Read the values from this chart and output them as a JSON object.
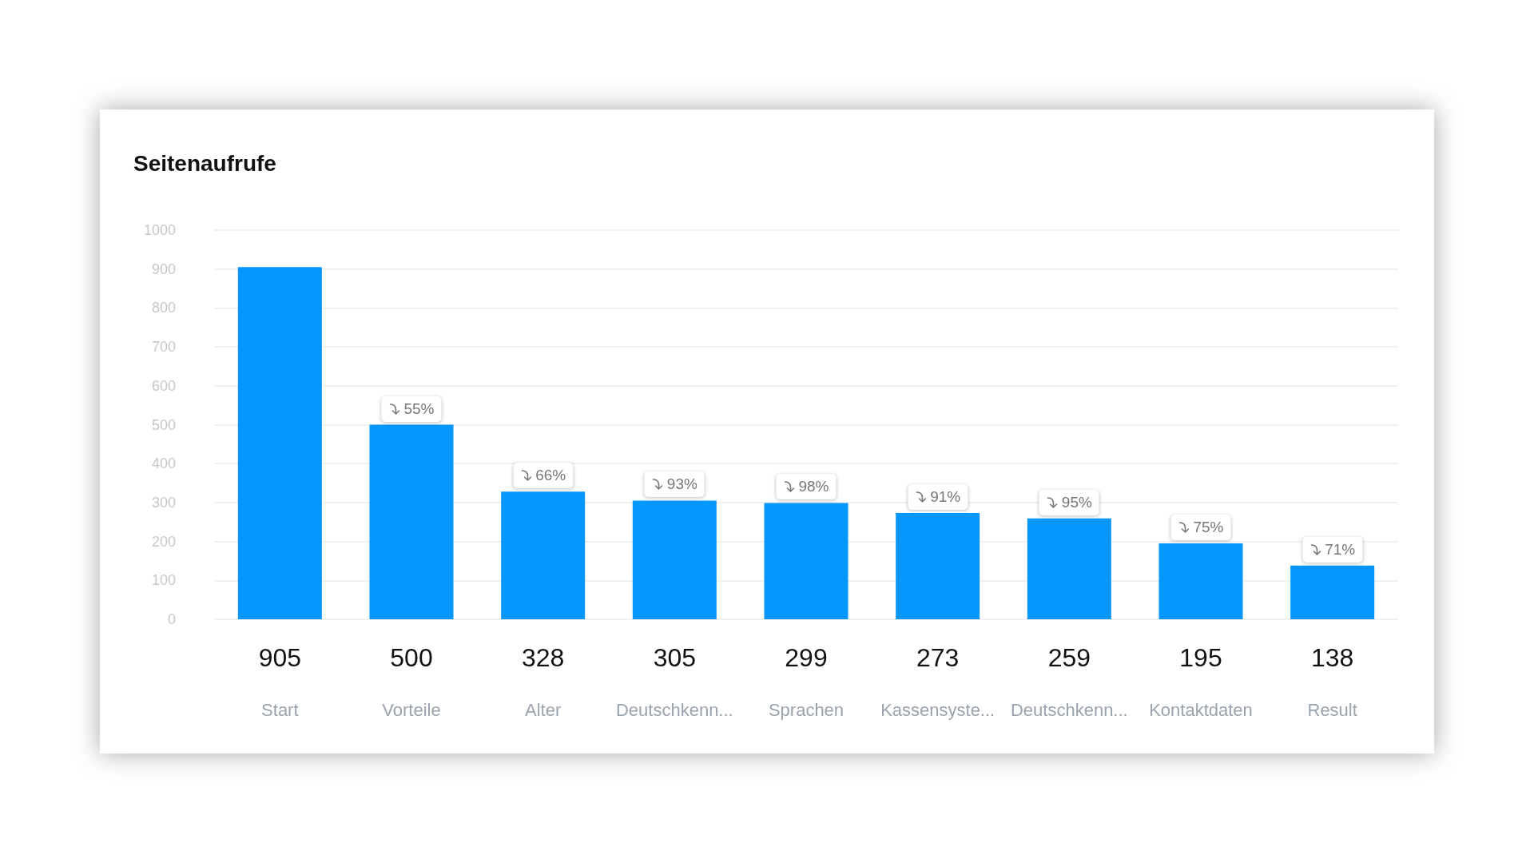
{
  "chart_data": {
    "type": "bar",
    "title": "Seitenaufrufe",
    "categories": [
      "Start",
      "Vorteile",
      "Alter",
      "Deutschkenn...",
      "Sprachen",
      "Kassensyste...",
      "Deutschkenn...",
      "Kontaktdaten",
      "Result"
    ],
    "values": [
      905,
      500,
      328,
      305,
      299,
      273,
      259,
      195,
      138
    ],
    "color": "#0596ff",
    "ylim": [
      0,
      1000
    ],
    "yticks": [
      0,
      100,
      200,
      300,
      400,
      500,
      600,
      700,
      800,
      900,
      1000
    ],
    "grid": "y",
    "data_labels": true,
    "annotations": [
      "55%",
      "66%",
      "93%",
      "98%",
      "91%",
      "95%",
      "75%",
      "71%"
    ]
  }
}
